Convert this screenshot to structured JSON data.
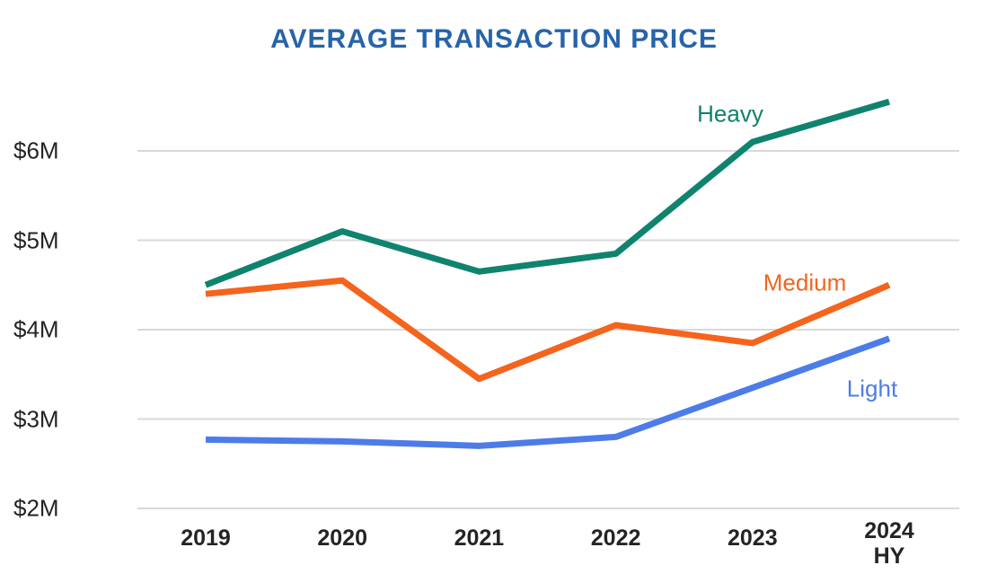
{
  "title": "AVERAGE TRANSACTION PRICE",
  "colors": {
    "title": "#2764a8",
    "axis_text": "#262423",
    "gridline": "#d9d9d9",
    "heavy": "#0f836d",
    "medium": "#f4641d",
    "light": "#4d7ce9",
    "background": "#ffffff"
  },
  "chart_data": {
    "type": "line",
    "title": "AVERAGE TRANSACTION PRICE",
    "categories": [
      "2019",
      "2020",
      "2021",
      "2022",
      "2023",
      "2024 HY"
    ],
    "x_labels_display": [
      "2019",
      "2020",
      "2021",
      "2022",
      "2023",
      "2024\nHY"
    ],
    "series": [
      {
        "name": "Heavy",
        "color": "#0f836d",
        "values": [
          4.5,
          5.1,
          4.65,
          4.85,
          6.1,
          6.55
        ],
        "label_x": 813,
        "label_y": 127
      },
      {
        "name": "Medium",
        "color": "#f4641d",
        "values": [
          4.4,
          4.55,
          3.45,
          4.05,
          3.85,
          4.5
        ],
        "label_x": 896,
        "label_y": 315
      },
      {
        "name": "Light",
        "color": "#4d7ce9",
        "values": [
          2.77,
          2.75,
          2.7,
          2.8,
          3.35,
          3.9
        ],
        "label_x": 971,
        "label_y": 433
      }
    ],
    "y_ticks": [
      "$6M",
      "$5M",
      "$4M",
      "$3M",
      "$2M"
    ],
    "y_tick_values": [
      6,
      5,
      4,
      3,
      2
    ],
    "ylim": [
      2,
      6.9
    ],
    "xlabel": "",
    "ylabel": "",
    "grid": "horizontal",
    "legend_position": "inline-labels"
  }
}
